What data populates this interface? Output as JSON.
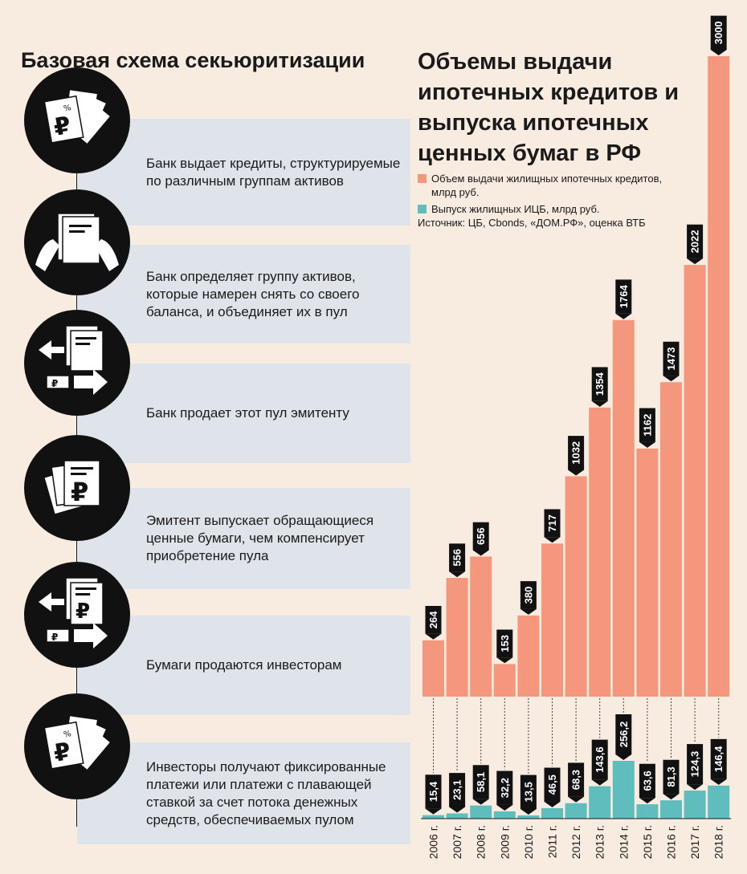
{
  "left": {
    "title": "Базовая схема секьюритизации",
    "steps": [
      {
        "text": "Банк выдает кредиты, структурируемые по различным группам активов",
        "icon": "ruble-documents-fan-icon"
      },
      {
        "text": "Банк определяет группу активов, которые намерен снять со своего баланса, и объединяет их в пул",
        "icon": "hands-holding-documents-icon"
      },
      {
        "text": "Банк продает этот пул эмитенту",
        "icon": "document-exchange-icon"
      },
      {
        "text": "Эмитент выпускает обращающиеся ценные бумаги, чем компенсирует приобретение пула",
        "icon": "ruble-securities-icon"
      },
      {
        "text": "Бумаги продаются инвесторам",
        "icon": "security-exchange-icon"
      },
      {
        "text": "Инвесторы получают фиксированные платежи или платежи с плавающей ставкой за счет потока денежных средств, обеспечиваемых пулом",
        "icon": "ruble-documents-fan-icon"
      }
    ]
  },
  "chart_data": {
    "type": "bar",
    "title": "Объемы выдачи ипотечных кредитов и выпуска ипотечных ценных бумаг в РФ",
    "source": "Источник: ЦБ, Cbonds, «ДОМ.РФ», оценка ВТБ",
    "categories": [
      "2006 г.",
      "2007 г.",
      "2008 г.",
      "2009 г.",
      "2010 г.",
      "2011 г.",
      "2012 г.",
      "2013 г.",
      "2014 г.",
      "2015 г.",
      "2016 г.",
      "2017 г.",
      "2018 г."
    ],
    "series": [
      {
        "name": "Объем выдачи жилищных ипотечных кредитов, млрд руб.",
        "color": "#f4977c",
        "values": [
          264,
          556,
          656,
          153,
          380,
          717,
          1032,
          1354,
          1764,
          1162,
          1473,
          2022,
          3000
        ],
        "labels": [
          "264",
          "556",
          "656",
          "153",
          "380",
          "717",
          "1032",
          "1354",
          "1764",
          "1162",
          "1473",
          "2022",
          "3000"
        ]
      },
      {
        "name": "Выпуск жилищных ИЦБ, млрд руб.",
        "color": "#5fbdbd",
        "values": [
          15.4,
          23.1,
          58.1,
          32.2,
          13.5,
          46.5,
          68.3,
          143.6,
          256.2,
          63.6,
          81.3,
          124.3,
          146.4
        ],
        "labels": [
          "15,4",
          "23,1",
          "58,1",
          "32,2",
          "13,5",
          "46,5",
          "68,3",
          "143,6",
          "256,2",
          "63,6",
          "81,3",
          "124,3",
          "146,4"
        ]
      }
    ],
    "grid": false,
    "legend": "top-right"
  }
}
